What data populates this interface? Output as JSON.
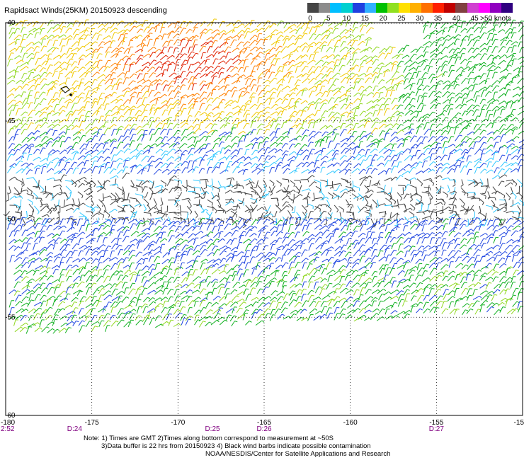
{
  "title": "Rapidsact Winds(25KM) 20150923 descending",
  "colorbar": {
    "colors": [
      "#454545",
      "#8c8c8c",
      "#00bfff",
      "#00d0d0",
      "#2040e0",
      "#30b0ff",
      "#00c000",
      "#90e020",
      "#ffe000",
      "#ffb000",
      "#ff7000",
      "#ff2000",
      "#c00000",
      "#804040",
      "#d040d0",
      "#ff00ff",
      "#9000c0",
      "#300080"
    ],
    "labels": [
      "0",
      "5",
      "10",
      "15",
      "20",
      "25",
      "30",
      "35",
      "40",
      "45",
      ">50 knots"
    ]
  },
  "chart_data": {
    "type": "wind-barb-map",
    "title": "Rapidsact Winds(25KM) 20150923 descending",
    "x_ticks": [
      "-180",
      "-175",
      "-170",
      "-165",
      "-160",
      "-155",
      "-15"
    ],
    "y_ticks": [
      "-40",
      "-45",
      "-50",
      "-55",
      "-60"
    ],
    "xlim": [
      -180,
      -150
    ],
    "ylim": [
      -60,
      -40
    ],
    "grid": true,
    "time_labels": [
      {
        "x": -180,
        "label": "2:52"
      },
      {
        "x": -176,
        "label": "D:24"
      },
      {
        "x": -168,
        "label": "D:25"
      },
      {
        "x": -165,
        "label": "D:26"
      },
      {
        "x": -155,
        "label": "D:27"
      }
    ],
    "colorbar_units": "knots"
  },
  "notes": [
    "Note: 1) Times are GMT 2)Times along bottom correspond to measurement at ~50S",
    "3)Data buffer is 22 hrs from 20150923 4) Black wind barbs indicate possible contamination",
    "NOAA/NESDIS/Center for Satellite Applications and Research"
  ]
}
